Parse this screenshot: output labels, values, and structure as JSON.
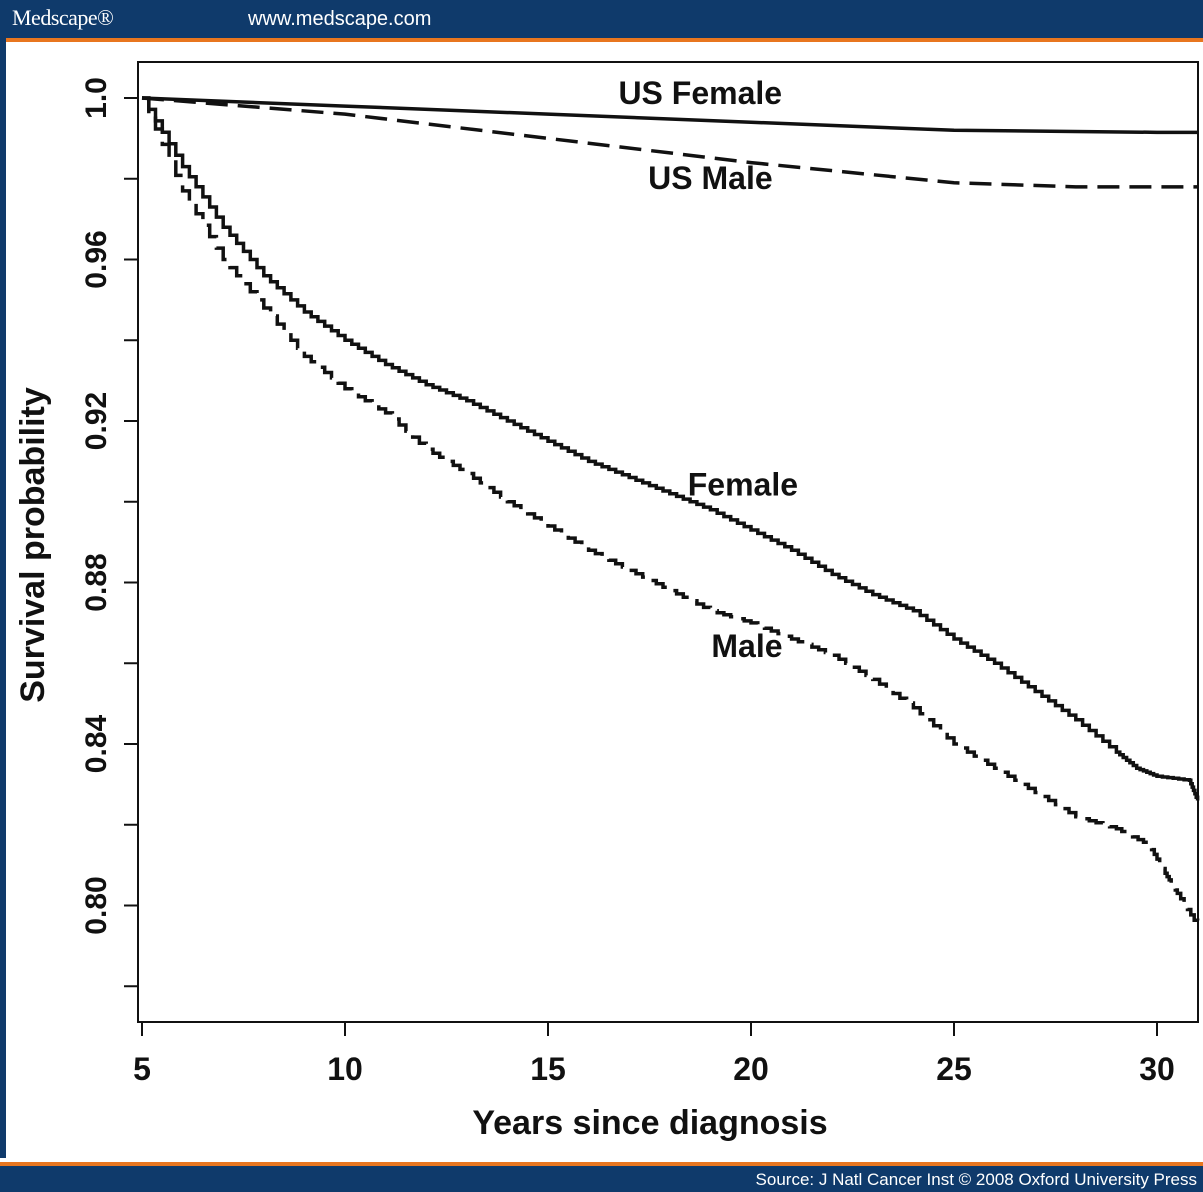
{
  "header": {
    "logo": "Medscape®",
    "url": "www.medscape.com"
  },
  "footer": {
    "source": "Source: J Natl Cancer Inst © 2008 Oxford University Press"
  },
  "chart_data": {
    "type": "line",
    "xlabel": "Years since diagnosis",
    "ylabel": "Survival probability",
    "xlim": [
      5,
      31
    ],
    "ylim": [
      0.78,
      1.01
    ],
    "x_ticks": [
      5,
      10,
      15,
      20,
      25,
      30
    ],
    "x_tick_labels": [
      "5",
      "10",
      "15",
      "20",
      "25",
      "30"
    ],
    "y_ticks": [
      0.78,
      0.8,
      0.82,
      0.84,
      0.86,
      0.88,
      0.9,
      0.92,
      0.94,
      0.96,
      0.98,
      1.0
    ],
    "y_tick_labels": [
      "",
      "0.80",
      "",
      "0.84",
      "",
      "0.88",
      "",
      "0.92",
      "",
      "0.96",
      "",
      "1.0"
    ],
    "grid": false,
    "legend": "none",
    "series": [
      {
        "name": "US Female",
        "dash": "solid",
        "label_at": [
          18.75,
          0.9985
        ],
        "x": [
          5,
          10,
          15,
          20,
          25,
          30,
          31
        ],
        "y": [
          1.0,
          0.998,
          0.996,
          0.994,
          0.992,
          0.9915,
          0.9915
        ]
      },
      {
        "name": "US Male",
        "dash": "dashed",
        "label_at": [
          19.0,
          0.9775
        ],
        "x": [
          5,
          10,
          15,
          20,
          25,
          28,
          31
        ],
        "y": [
          1.0,
          0.996,
          0.99,
          0.984,
          0.979,
          0.978,
          0.978
        ]
      },
      {
        "name": "Female",
        "dash": "solid",
        "label_at": [
          19.8,
          0.9015
        ],
        "x": [
          5,
          6,
          7,
          8,
          9,
          10,
          11,
          12,
          13,
          14,
          15,
          16,
          17,
          18,
          19,
          20,
          21,
          22,
          23,
          24,
          25,
          26,
          27,
          28,
          29,
          29.5,
          30,
          30.8,
          31
        ],
        "y": [
          1.0,
          0.983,
          0.968,
          0.956,
          0.947,
          0.94,
          0.934,
          0.929,
          0.925,
          0.92,
          0.915,
          0.91,
          0.906,
          0.902,
          0.898,
          0.893,
          0.888,
          0.882,
          0.877,
          0.873,
          0.866,
          0.86,
          0.853,
          0.846,
          0.838,
          0.834,
          0.832,
          0.831,
          0.826
        ]
      },
      {
        "name": "Male",
        "dash": "dashed",
        "label_at": [
          19.9,
          0.8615
        ],
        "x": [
          5,
          6,
          7,
          8,
          9,
          10,
          11,
          12,
          13,
          14,
          15,
          16,
          17,
          18,
          19,
          20,
          21,
          22,
          23,
          24,
          25,
          26,
          27,
          28,
          29,
          29.8,
          30.2,
          30.5,
          31
        ],
        "y": [
          1.0,
          0.977,
          0.96,
          0.948,
          0.936,
          0.928,
          0.922,
          0.913,
          0.907,
          0.9,
          0.894,
          0.888,
          0.883,
          0.878,
          0.873,
          0.87,
          0.866,
          0.862,
          0.856,
          0.849,
          0.84,
          0.834,
          0.828,
          0.822,
          0.819,
          0.815,
          0.808,
          0.803,
          0.795
        ]
      }
    ]
  }
}
